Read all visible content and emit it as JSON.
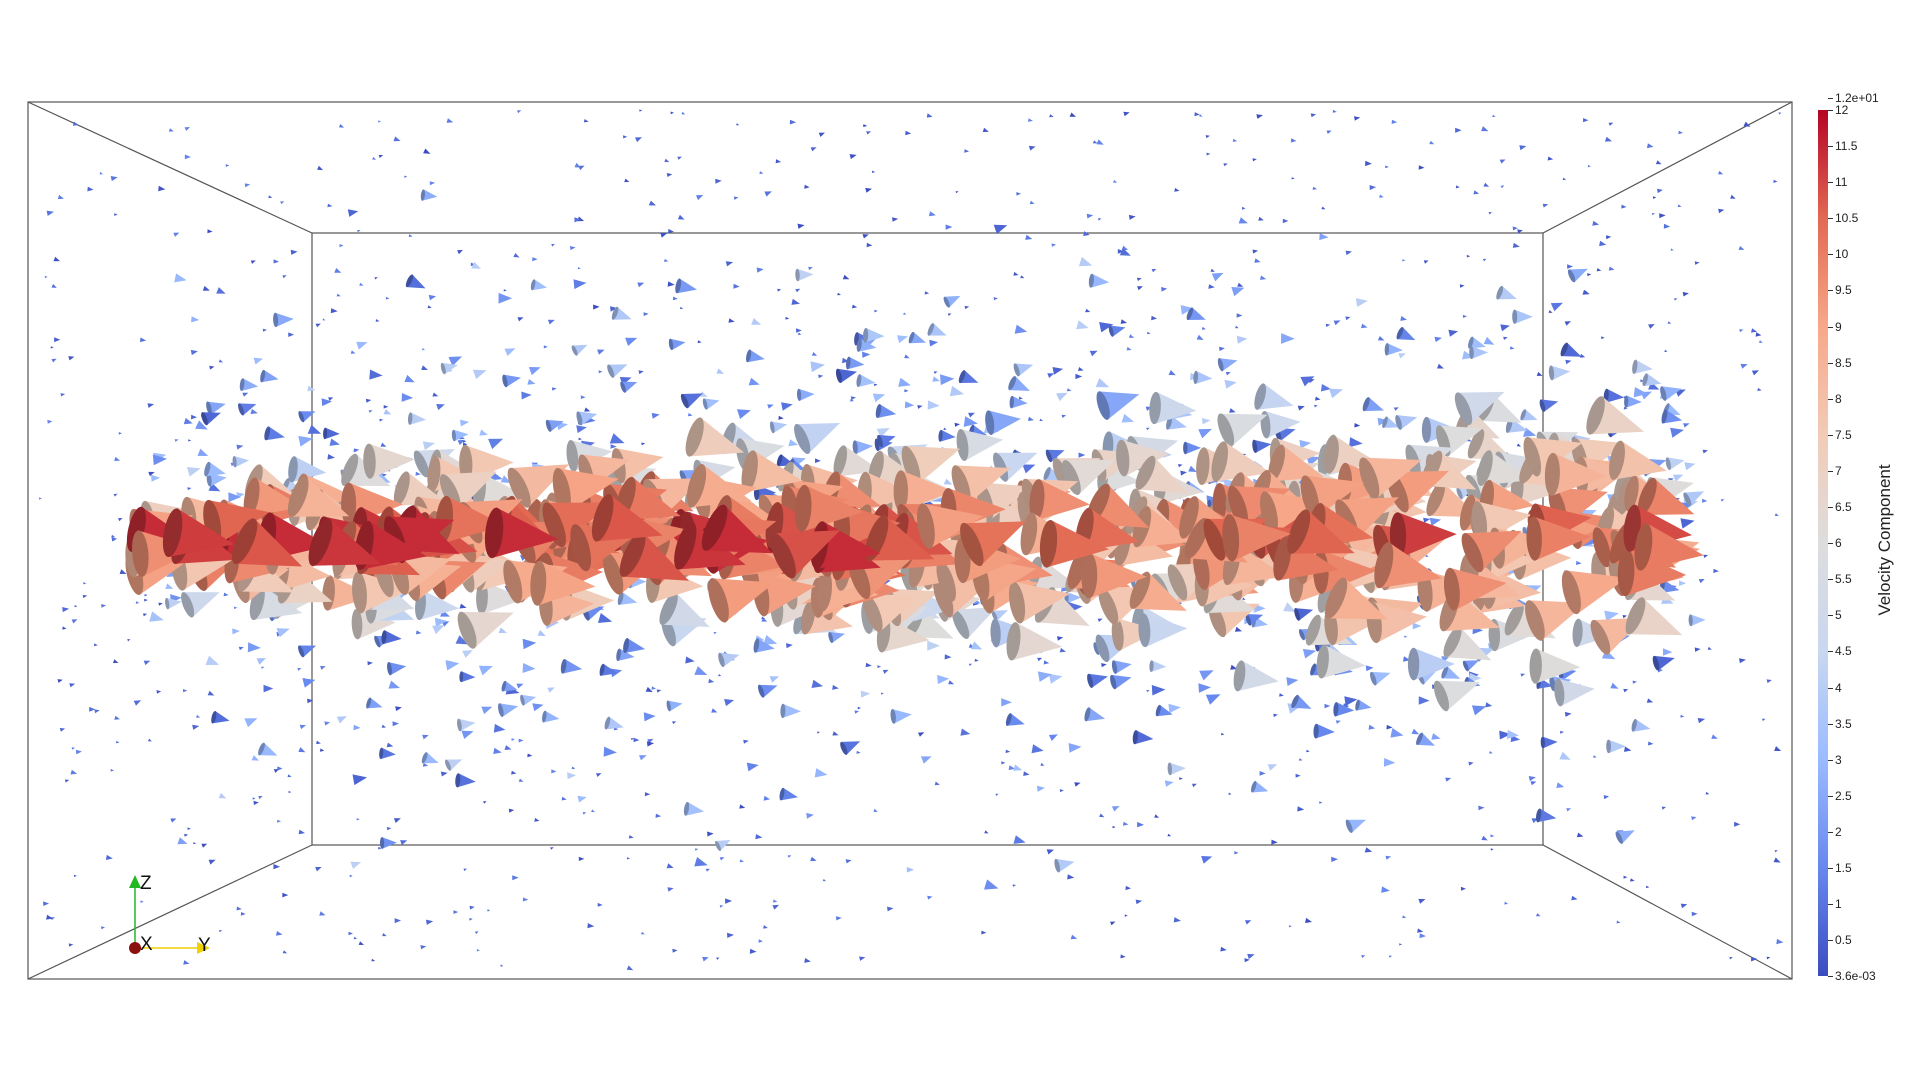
{
  "colorbar": {
    "title": "Velocity Component",
    "max_label": "1.2e+01",
    "min_label": "3.6e-03",
    "tick_labels": [
      "12",
      "11.5",
      "11",
      "10.5",
      "10",
      "9.5",
      "9",
      "8.5",
      "8",
      "7.5",
      "7",
      "6.5",
      "6",
      "5.5",
      "5",
      "4.5",
      "4",
      "3.5",
      "3",
      "2.5",
      "2",
      "1.5",
      "1",
      "0.5"
    ],
    "range": [
      0.0036,
      12
    ],
    "colormap": [
      "#3b4cc0",
      "#6788ee",
      "#9abbff",
      "#c9d7f0",
      "#dddddd",
      "#f2cbb7",
      "#f7a889",
      "#e26952",
      "#b40426"
    ]
  },
  "orientation_axes": {
    "z_label": "Z",
    "x_label": "X",
    "y_label": "Y",
    "z_color": "#22b822",
    "x_color": "#8b1010",
    "y_color": "#f0d000"
  },
  "scene": {
    "background": "#ffffff",
    "glyph_type": "cone",
    "box_color": "#555555"
  }
}
